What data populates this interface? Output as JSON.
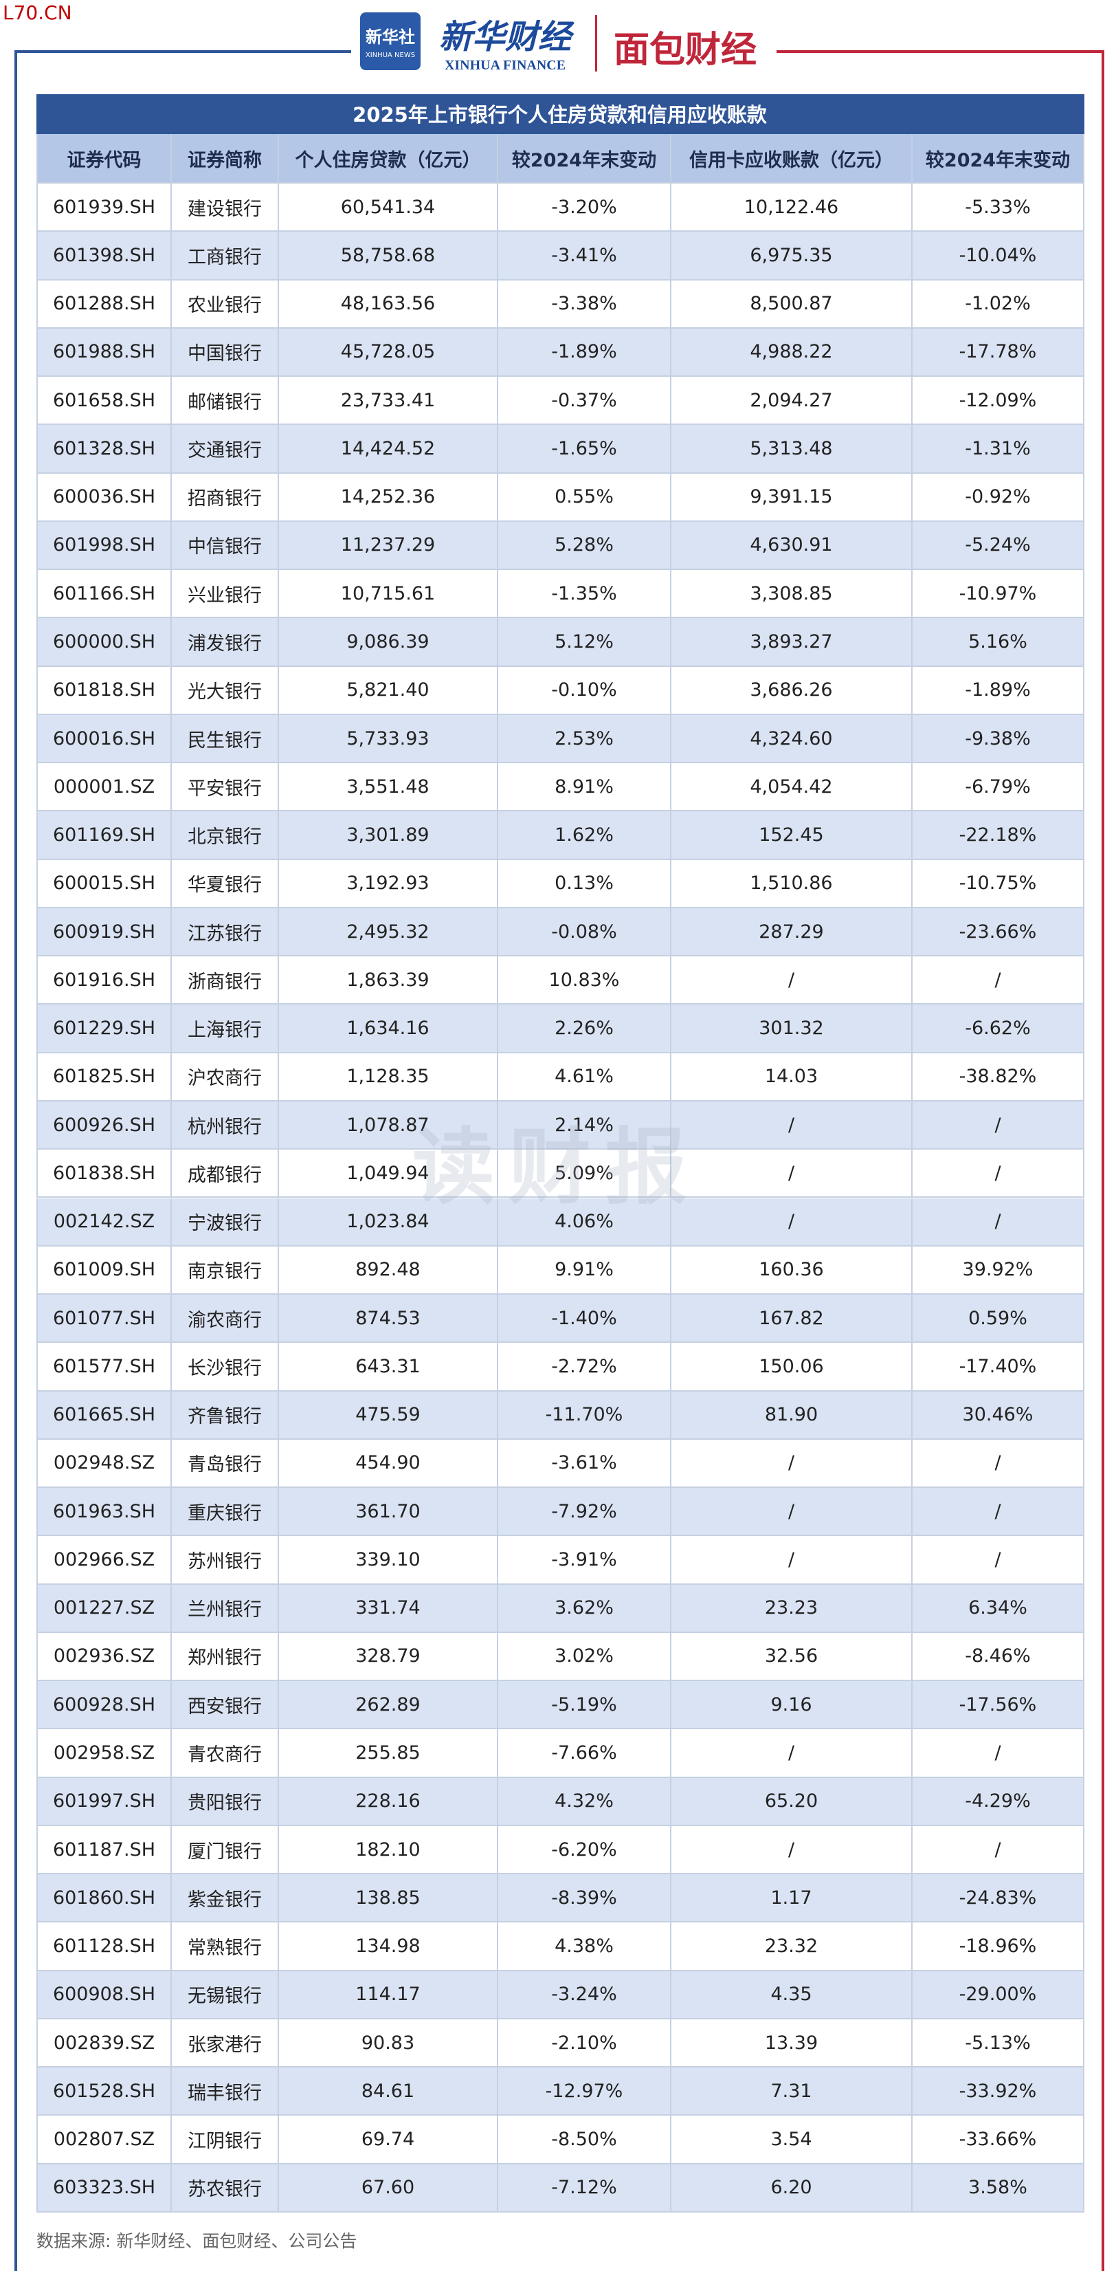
{
  "site": "L70.CN",
  "header": {
    "logo_xinhua": "新华社",
    "logo_xinhua_en": "XINHUA NEWS",
    "logo_finance": "新华财经",
    "logo_finance_en": "XINHUA FINANCE",
    "logo_mianbao": "面包财经"
  },
  "table": {
    "title": "2025年上市银行个人住房贷款和信用应收账款",
    "columns": [
      "证券代码",
      "证券简称",
      "个人住房贷款（亿元）",
      "较2024年末变动",
      "信用卡应收账款（亿元）",
      "较2024年末变动"
    ],
    "rows": [
      [
        "601939.SH",
        "建设银行",
        "60,541.34",
        "-3.20%",
        "10,122.46",
        "-5.33%"
      ],
      [
        "601398.SH",
        "工商银行",
        "58,758.68",
        "-3.41%",
        "6,975.35",
        "-10.04%"
      ],
      [
        "601288.SH",
        "农业银行",
        "48,163.56",
        "-3.38%",
        "8,500.87",
        "-1.02%"
      ],
      [
        "601988.SH",
        "中国银行",
        "45,728.05",
        "-1.89%",
        "4,988.22",
        "-17.78%"
      ],
      [
        "601658.SH",
        "邮储银行",
        "23,733.41",
        "-0.37%",
        "2,094.27",
        "-12.09%"
      ],
      [
        "601328.SH",
        "交通银行",
        "14,424.52",
        "-1.65%",
        "5,313.48",
        "-1.31%"
      ],
      [
        "600036.SH",
        "招商银行",
        "14,252.36",
        "0.55%",
        "9,391.15",
        "-0.92%"
      ],
      [
        "601998.SH",
        "中信银行",
        "11,237.29",
        "5.28%",
        "4,630.91",
        "-5.24%"
      ],
      [
        "601166.SH",
        "兴业银行",
        "10,715.61",
        "-1.35%",
        "3,308.85",
        "-10.97%"
      ],
      [
        "600000.SH",
        "浦发银行",
        "9,086.39",
        "5.12%",
        "3,893.27",
        "5.16%"
      ],
      [
        "601818.SH",
        "光大银行",
        "5,821.40",
        "-0.10%",
        "3,686.26",
        "-1.89%"
      ],
      [
        "600016.SH",
        "民生银行",
        "5,733.93",
        "2.53%",
        "4,324.60",
        "-9.38%"
      ],
      [
        "000001.SZ",
        "平安银行",
        "3,551.48",
        "8.91%",
        "4,054.42",
        "-6.79%"
      ],
      [
        "601169.SH",
        "北京银行",
        "3,301.89",
        "1.62%",
        "152.45",
        "-22.18%"
      ],
      [
        "600015.SH",
        "华夏银行",
        "3,192.93",
        "0.13%",
        "1,510.86",
        "-10.75%"
      ],
      [
        "600919.SH",
        "江苏银行",
        "2,495.32",
        "-0.08%",
        "287.29",
        "-23.66%"
      ],
      [
        "601916.SH",
        "浙商银行",
        "1,863.39",
        "10.83%",
        "/",
        "/"
      ],
      [
        "601229.SH",
        "上海银行",
        "1,634.16",
        "2.26%",
        "301.32",
        "-6.62%"
      ],
      [
        "601825.SH",
        "沪农商行",
        "1,128.35",
        "4.61%",
        "14.03",
        "-38.82%"
      ],
      [
        "600926.SH",
        "杭州银行",
        "1,078.87",
        "2.14%",
        "/",
        "/"
      ],
      [
        "601838.SH",
        "成都银行",
        "1,049.94",
        "5.09%",
        "/",
        "/"
      ],
      [
        "002142.SZ",
        "宁波银行",
        "1,023.84",
        "4.06%",
        "/",
        "/"
      ],
      [
        "601009.SH",
        "南京银行",
        "892.48",
        "9.91%",
        "160.36",
        "39.92%"
      ],
      [
        "601077.SH",
        "渝农商行",
        "874.53",
        "-1.40%",
        "167.82",
        "0.59%"
      ],
      [
        "601577.SH",
        "长沙银行",
        "643.31",
        "-2.72%",
        "150.06",
        "-17.40%"
      ],
      [
        "601665.SH",
        "齐鲁银行",
        "475.59",
        "-11.70%",
        "81.90",
        "30.46%"
      ],
      [
        "002948.SZ",
        "青岛银行",
        "454.90",
        "-3.61%",
        "/",
        "/"
      ],
      [
        "601963.SH",
        "重庆银行",
        "361.70",
        "-7.92%",
        "/",
        "/"
      ],
      [
        "002966.SZ",
        "苏州银行",
        "339.10",
        "-3.91%",
        "/",
        "/"
      ],
      [
        "001227.SZ",
        "兰州银行",
        "331.74",
        "3.62%",
        "23.23",
        "6.34%"
      ],
      [
        "002936.SZ",
        "郑州银行",
        "328.79",
        "3.02%",
        "32.56",
        "-8.46%"
      ],
      [
        "600928.SH",
        "西安银行",
        "262.89",
        "-5.19%",
        "9.16",
        "-17.56%"
      ],
      [
        "002958.SZ",
        "青农商行",
        "255.85",
        "-7.66%",
        "/",
        "/"
      ],
      [
        "601997.SH",
        "贵阳银行",
        "228.16",
        "4.32%",
        "65.20",
        "-4.29%"
      ],
      [
        "601187.SH",
        "厦门银行",
        "182.10",
        "-6.20%",
        "/",
        "/"
      ],
      [
        "601860.SH",
        "紫金银行",
        "138.85",
        "-8.39%",
        "1.17",
        "-24.83%"
      ],
      [
        "601128.SH",
        "常熟银行",
        "134.98",
        "4.38%",
        "23.32",
        "-18.96%"
      ],
      [
        "600908.SH",
        "无锡银行",
        "114.17",
        "-3.24%",
        "4.35",
        "-29.00%"
      ],
      [
        "002839.SZ",
        "张家港行",
        "90.83",
        "-2.10%",
        "13.39",
        "-5.13%"
      ],
      [
        "601528.SH",
        "瑞丰银行",
        "84.61",
        "-12.97%",
        "7.31",
        "-33.92%"
      ],
      [
        "002807.SZ",
        "江阴银行",
        "69.74",
        "-8.50%",
        "3.54",
        "-33.66%"
      ],
      [
        "603323.SH",
        "苏农银行",
        "67.60",
        "-7.12%",
        "6.20",
        "3.58%"
      ]
    ]
  },
  "watermark": "读财报",
  "source": "数据来源: 新华财经、面包财经、公司公告"
}
